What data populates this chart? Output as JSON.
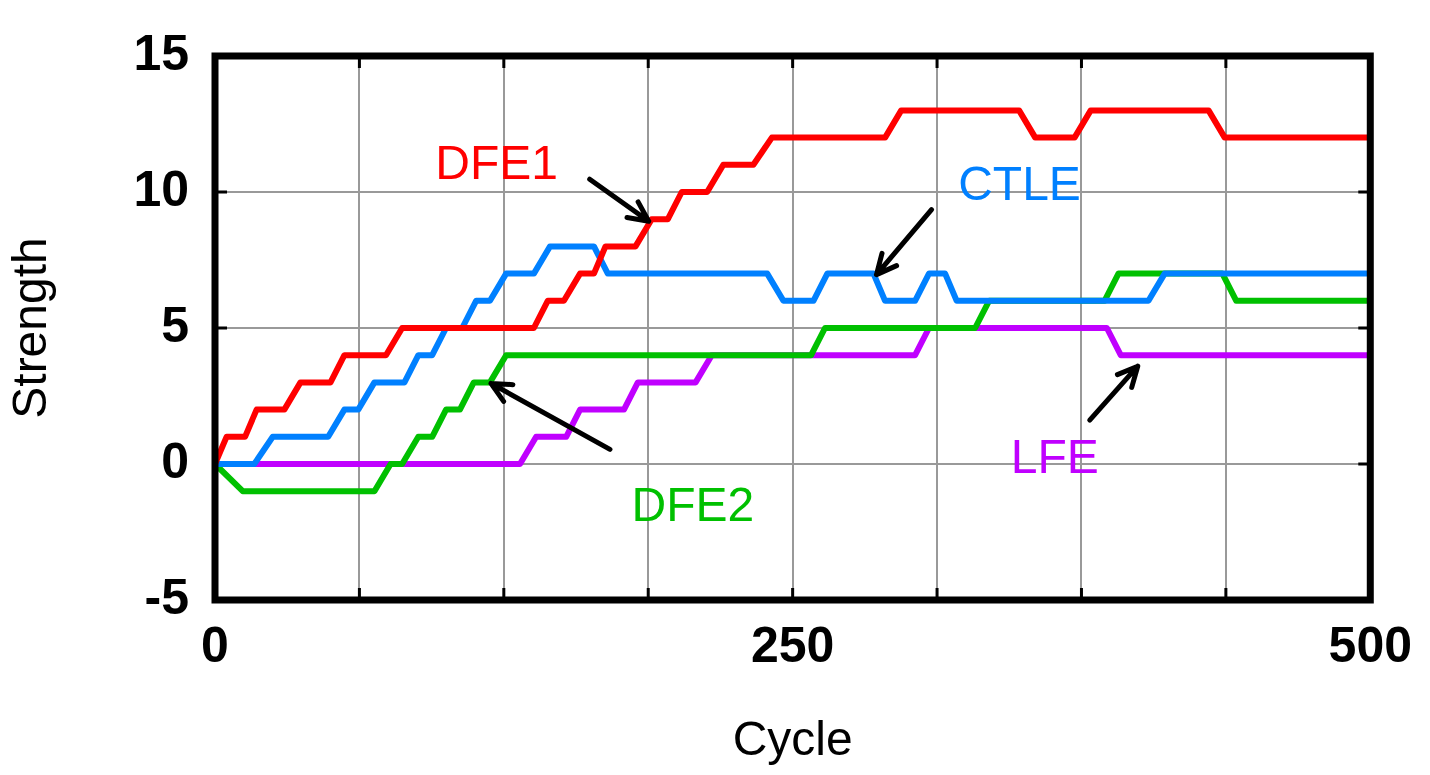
{
  "chart_data": {
    "type": "line",
    "xlabel": "Cycle",
    "ylabel": "Strength",
    "xlim": [
      0,
      500
    ],
    "ylim": [
      -5,
      15
    ],
    "xticks": [
      0,
      {
        "value": 62.5,
        "label": null
      },
      {
        "value": 125,
        "label": null
      },
      {
        "value": 187.5,
        "label": null
      },
      250,
      {
        "value": 312.5,
        "label": null
      },
      {
        "value": 375,
        "label": null
      },
      {
        "value": 437.5,
        "label": null
      },
      500
    ],
    "yticks": [
      -5,
      0,
      5,
      10,
      15
    ],
    "grid": true,
    "series": [
      {
        "name": "DFE1",
        "color": "#ff0000",
        "x": [
          0,
          5,
          13,
          18,
          30,
          37,
          50,
          56,
          74,
          81,
          138,
          144,
          151,
          158,
          164,
          169,
          182,
          189,
          196,
          202,
          213,
          220,
          233,
          241,
          290,
          297,
          348,
          355,
          372,
          379,
          430,
          437,
          500
        ],
        "values": [
          0,
          1,
          1,
          2,
          2,
          3,
          3,
          4,
          4,
          5,
          5,
          6,
          6,
          7,
          7,
          8,
          8,
          9,
          9,
          10,
          10,
          11,
          11,
          12,
          12,
          13,
          13,
          12,
          12,
          13,
          13,
          12,
          12
        ]
      },
      {
        "name": "CTLE",
        "color": "#0080ff",
        "x": [
          0,
          17,
          25,
          49,
          56,
          62,
          69,
          82,
          88,
          94,
          100,
          107,
          113,
          119,
          126,
          138,
          145,
          164,
          170,
          239,
          246,
          259,
          265,
          285,
          290,
          303,
          309,
          316,
          321,
          404,
          411,
          500
        ],
        "values": [
          0,
          0,
          1,
          1,
          2,
          2,
          3,
          3,
          4,
          4,
          5,
          5,
          6,
          6,
          7,
          7,
          8,
          8,
          7,
          7,
          6,
          6,
          7,
          7,
          6,
          6,
          7,
          7,
          6,
          6,
          7,
          7
        ]
      },
      {
        "name": "DFE2",
        "color": "#00c000",
        "x": [
          0,
          12,
          69,
          76,
          81,
          88,
          94,
          100,
          106,
          112,
          119,
          126,
          258,
          264,
          329,
          335,
          385,
          391,
          436,
          442,
          500
        ],
        "values": [
          0,
          -1,
          -1,
          0,
          0,
          1,
          1,
          2,
          2,
          3,
          3,
          4,
          4,
          5,
          5,
          6,
          6,
          7,
          7,
          6,
          6
        ]
      },
      {
        "name": "LFE",
        "color": "#c000ff",
        "x": [
          0,
          132,
          139,
          152,
          158,
          177,
          183,
          208,
          215,
          303,
          309,
          386,
          392,
          500
        ],
        "values": [
          0,
          0,
          1,
          1,
          2,
          2,
          3,
          3,
          4,
          4,
          5,
          5,
          4,
          4
        ]
      }
    ]
  }
}
